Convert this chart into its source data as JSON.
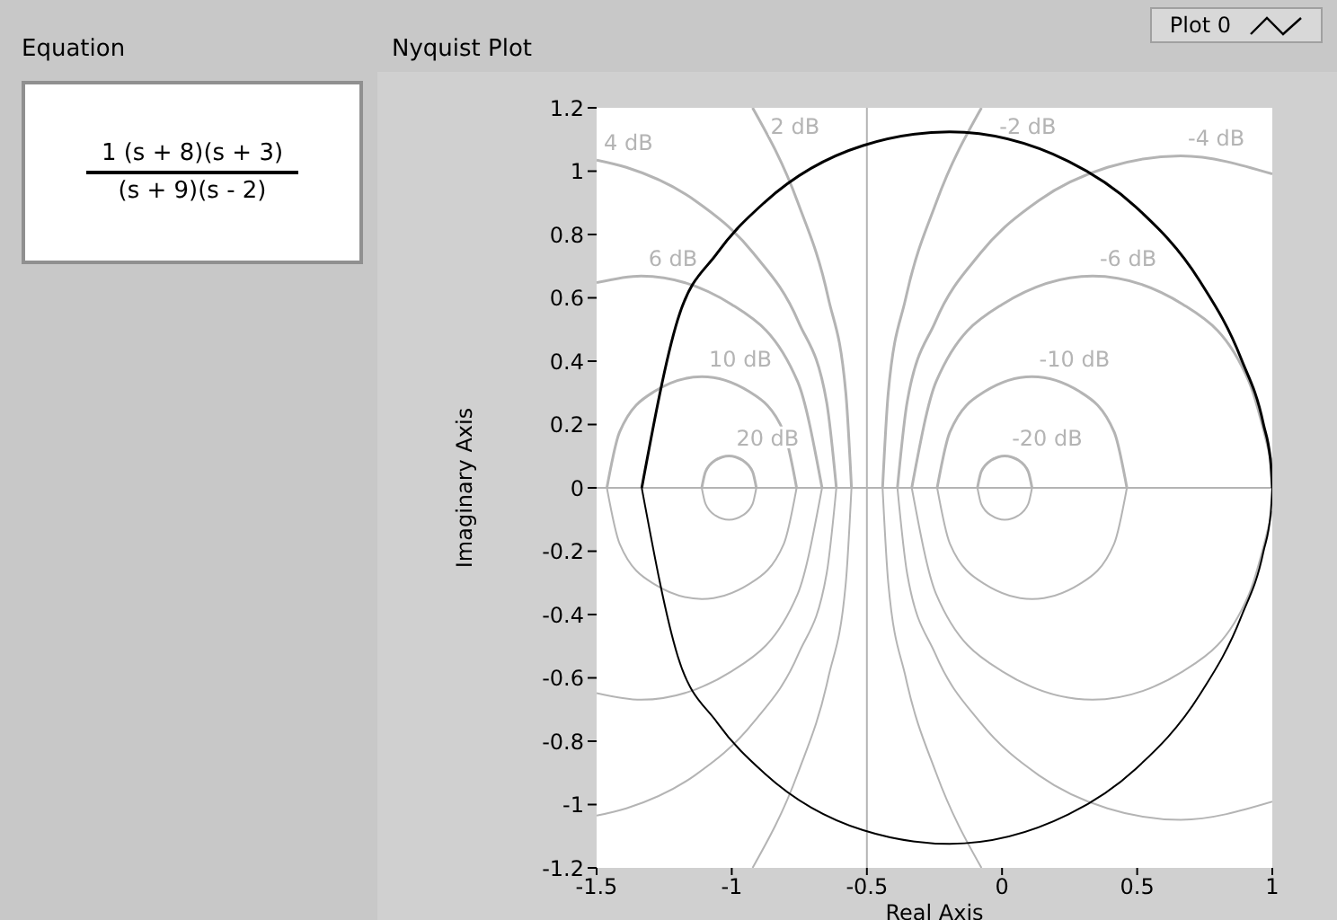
{
  "chart_data": {
    "type": "line",
    "title": "Nyquist Plot",
    "xlabel": "Real Axis",
    "ylabel": "Imaginary Axis",
    "xlim": [
      -1.5,
      1
    ],
    "xticks": [
      -1.5,
      -1,
      -0.5,
      0,
      0.5,
      1
    ],
    "ylim": [
      -1.2,
      1.2
    ],
    "yticks": [
      -1.2,
      -1,
      -0.8,
      -0.6,
      -0.4,
      -0.2,
      0,
      0.2,
      0.4,
      0.6,
      0.8,
      1,
      1.2
    ],
    "legend": "top right",
    "marker": "none",
    "line_style": "solid",
    "ref_lines": [
      {
        "axis": "x",
        "value": -0.5,
        "color": "#b4b4b4"
      },
      {
        "axis": "y",
        "value": 0,
        "color": "#b4b4b4"
      }
    ],
    "annotations": [
      "Equation",
      "1 (s + 8)(s + 3)",
      "(s + 9)(s - 2)"
    ],
    "series": [
      {
        "name": "20 dB",
        "color": "#b4b4b4",
        "x": [
          -1.111,
          -1.097,
          -1.061,
          -1.01,
          -0.96,
          -0.923,
          -0.909
        ],
        "values": [
          0,
          0.051,
          0.087,
          0.101,
          0.087,
          0.051,
          0
        ]
      },
      {
        "color": "#b4b4b4",
        "x": [
          -1.111,
          -1.097,
          -1.061,
          -1.01,
          -0.96,
          -0.923,
          -0.909
        ],
        "values": [
          0,
          -0.051,
          -0.087,
          -0.101,
          -0.087,
          -0.051,
          0
        ]
      },
      {
        "name": "-20 dB",
        "color": "#b4b4b4",
        "x": [
          -0.091,
          -0.077,
          -0.04,
          0.01,
          0.061,
          0.097,
          0.111
        ],
        "values": [
          0,
          0.051,
          0.087,
          0.101,
          0.087,
          0.051,
          0
        ]
      },
      {
        "color": "#b4b4b4",
        "x": [
          -0.091,
          -0.077,
          -0.04,
          0.01,
          0.061,
          0.097,
          0.111
        ],
        "values": [
          0,
          -0.051,
          -0.087,
          -0.101,
          -0.087,
          -0.051,
          0
        ]
      },
      {
        "name": "10 dB",
        "color": "#b4b4b4",
        "x": [
          -1.462,
          -1.415,
          -1.287,
          -1.111,
          -0.936,
          -0.807,
          -0.76
        ],
        "values": [
          0,
          0.176,
          0.304,
          0.351,
          0.304,
          0.176,
          0
        ]
      },
      {
        "color": "#b4b4b4",
        "x": [
          -1.462,
          -1.415,
          -1.287,
          -1.111,
          -0.936,
          -0.807,
          -0.76
        ],
        "values": [
          0,
          -0.176,
          -0.304,
          -0.351,
          -0.304,
          -0.176,
          0
        ]
      },
      {
        "name": "-10 dB",
        "color": "#b4b4b4",
        "x": [
          -0.24,
          -0.193,
          -0.064,
          0.111,
          0.287,
          0.415,
          0.462
        ],
        "values": [
          0,
          0.176,
          0.304,
          0.351,
          0.304,
          0.176,
          0
        ]
      },
      {
        "color": "#b4b4b4",
        "x": [
          -0.24,
          -0.193,
          -0.064,
          0.111,
          0.287,
          0.415,
          0.462
        ],
        "values": [
          0,
          -0.176,
          -0.304,
          -0.351,
          -0.304,
          -0.176,
          0
        ]
      },
      {
        "name": "-6 dB",
        "color": "#b4b4b4",
        "x": [
          -0.334,
          -0.244,
          0,
          0.335,
          0.67,
          0.914,
          1
        ],
        "values": [
          0,
          0.335,
          0.579,
          0.669,
          0.579,
          0.335,
          0.073
        ]
      },
      {
        "color": "#b4b4b4",
        "x": [
          -0.334,
          -0.244,
          0,
          0.335,
          0.67,
          0.914,
          1
        ],
        "values": [
          0,
          -0.335,
          -0.579,
          -0.669,
          -0.579,
          -0.335,
          -0.073
        ]
      },
      {
        "name": "6 dB",
        "color": "#b4b4b4",
        "x": [
          -1.5,
          -1.335,
          -1,
          -0.756,
          -0.666
        ],
        "values": [
          0.648,
          0.669,
          0.579,
          0.335,
          0
        ]
      },
      {
        "color": "#b4b4b4",
        "x": [
          -1.5,
          -1.335,
          -1,
          -0.756,
          -0.666
        ],
        "values": [
          -0.648,
          -0.669,
          -0.579,
          -0.335,
          0
        ]
      },
      {
        "name": "4 dB",
        "color": "#b4b4b4",
        "x": [
          -1.5,
          -1.39,
          -1.137,
          -0.92,
          -0.753,
          -0.649,
          -0.613
        ],
        "values": [
          1.035,
          1.012,
          0.908,
          0.741,
          0.524,
          0.271,
          0
        ]
      },
      {
        "color": "#b4b4b4",
        "x": [
          -1.5,
          -1.39,
          -1.137,
          -0.92,
          -0.753,
          -0.649,
          -0.613
        ],
        "values": [
          -1.035,
          -1.012,
          -0.908,
          -0.741,
          -0.524,
          -0.271,
          0
        ]
      },
      {
        "name": "-4 dB",
        "color": "#b4b4b4",
        "x": [
          -0.387,
          -0.351,
          -0.247,
          -0.08,
          0.137,
          0.39,
          0.661,
          1
        ],
        "values": [
          0,
          0.271,
          0.524,
          0.741,
          0.908,
          1.012,
          1.048,
          0.991
        ]
      },
      {
        "color": "#b4b4b4",
        "x": [
          -0.387,
          -0.351,
          -0.247,
          -0.08,
          0.137,
          0.39,
          0.661,
          1
        ],
        "values": [
          0,
          -0.271,
          -0.524,
          -0.741,
          -0.908,
          -1.012,
          -1.048,
          -0.991
        ]
      },
      {
        "name": "2 dB",
        "color": "#b4b4b4",
        "x": [
          -0.923,
          -0.755,
          -0.643,
          -0.578,
          -0.557
        ],
        "values": [
          1.2,
          0.9,
          0.6,
          0.3,
          0
        ]
      },
      {
        "color": "#b4b4b4",
        "x": [
          -0.923,
          -0.755,
          -0.643,
          -0.578,
          -0.557
        ],
        "values": [
          -1.2,
          -0.9,
          -0.6,
          -0.3,
          0
        ]
      },
      {
        "name": "-2 dB",
        "color": "#b4b4b4",
        "x": [
          -0.442,
          -0.421,
          -0.356,
          -0.244,
          -0.076
        ],
        "values": [
          0,
          0.3,
          0.6,
          0.9,
          1.2
        ]
      },
      {
        "color": "#b4b4b4",
        "x": [
          -0.442,
          -0.421,
          -0.356,
          -0.244,
          -0.076
        ],
        "values": [
          0,
          -0.3,
          -0.6,
          -0.9,
          -1.2
        ]
      },
      {
        "name": "Plot 0",
        "color": "#000000",
        "x": [
          -1.333,
          -1.2,
          -1.053,
          -0.878,
          -0.514,
          -0.194,
          0.246,
          0.495,
          0.731,
          0.885,
          0.967,
          0.994,
          1
        ],
        "values": [
          0,
          0.531,
          0.742,
          0.902,
          1.081,
          1.124,
          1.031,
          0.887,
          0.654,
          0.407,
          0.202,
          0.08,
          0
        ]
      },
      {
        "color": "#000000",
        "x": [
          -1.333,
          -1.2,
          -1.053,
          -0.878,
          -0.514,
          -0.194,
          0.246,
          0.495,
          0.731,
          0.885,
          0.967,
          0.994,
          1
        ],
        "values": [
          0,
          -0.531,
          -0.742,
          -0.902,
          -1.081,
          -1.124,
          -1.031,
          -0.887,
          -0.654,
          -0.407,
          -0.202,
          -0.08,
          0
        ]
      }
    ]
  }
}
